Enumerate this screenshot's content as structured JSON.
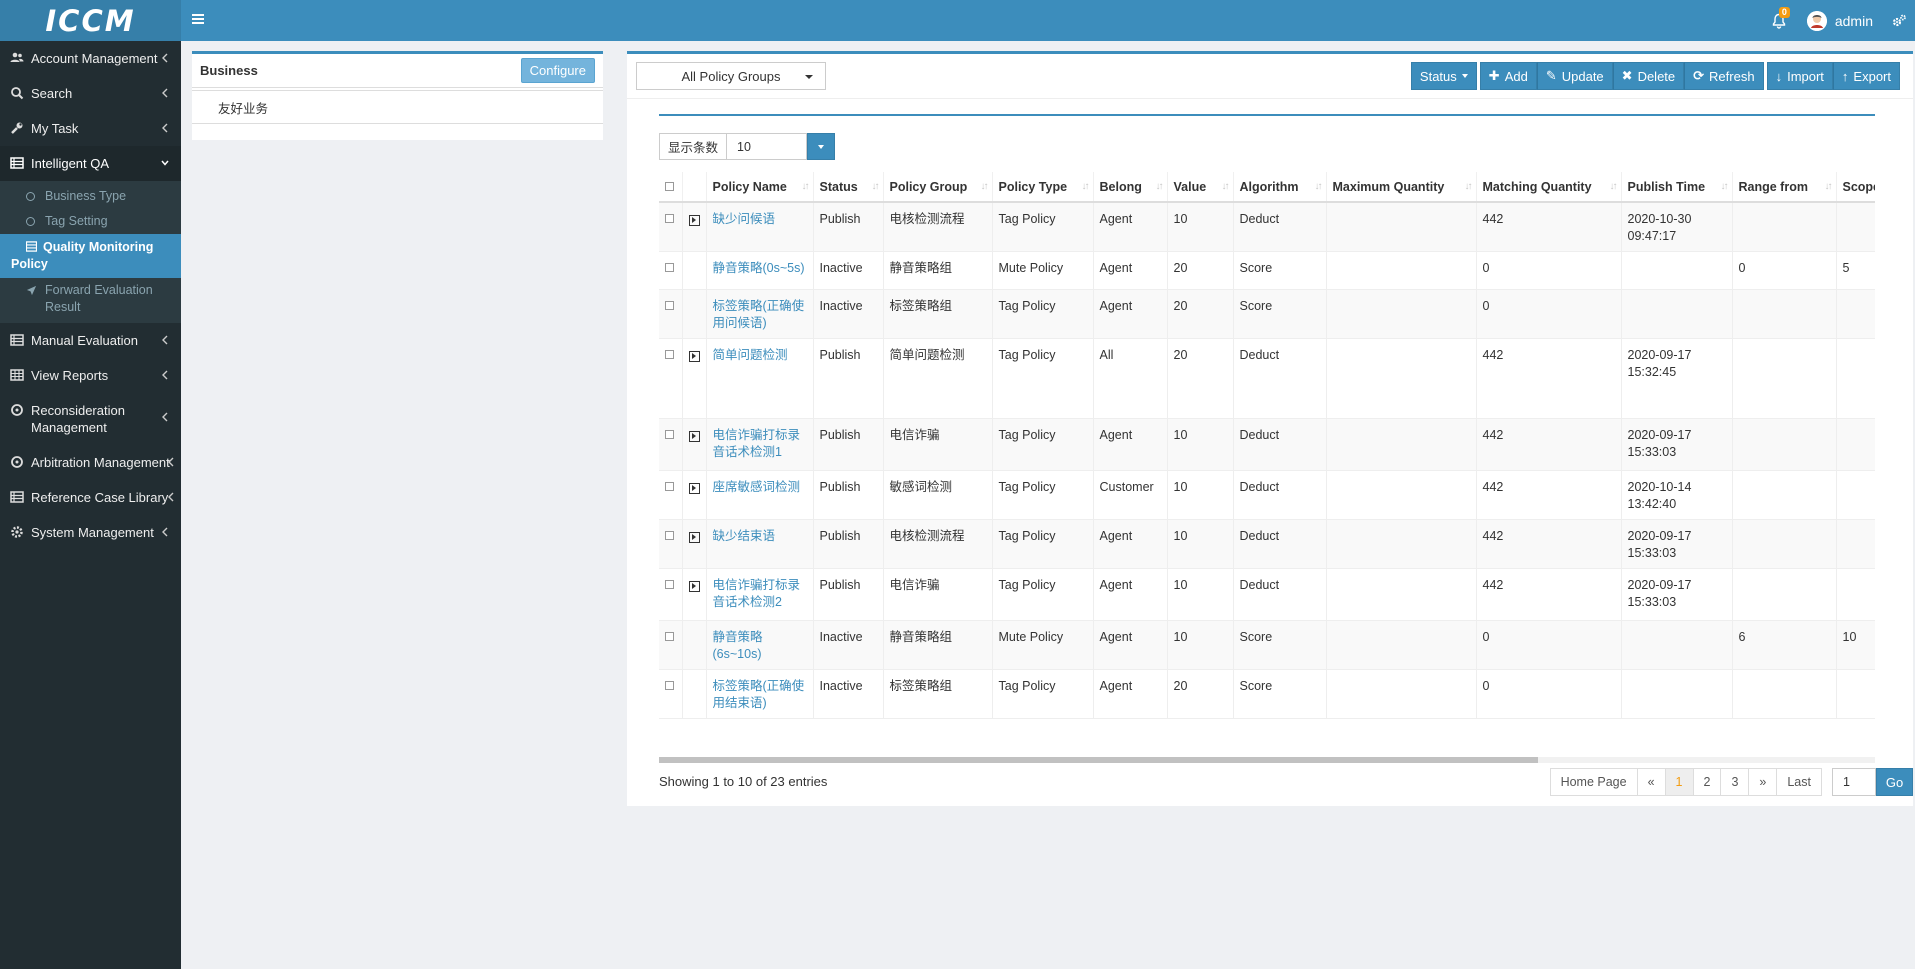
{
  "app": {
    "logo_text": "ICCM"
  },
  "header": {
    "notification_count": "0",
    "user": "admin"
  },
  "sidebar": {
    "items": [
      {
        "label": "Account Management",
        "icon": "users-icon"
      },
      {
        "label": "Search",
        "icon": "search-icon"
      },
      {
        "label": "My Task",
        "icon": "wrench-icon"
      },
      {
        "label": "Intelligent QA",
        "icon": "list-icon",
        "expanded": true,
        "children": [
          {
            "label": "Business Type"
          },
          {
            "label": "Tag Setting"
          },
          {
            "label": "Quality Monitoring Policy",
            "selected": true
          },
          {
            "label": "Forward Evaluation Result"
          }
        ]
      },
      {
        "label": "Manual Evaluation",
        "icon": "list-icon"
      },
      {
        "label": "View Reports",
        "icon": "table-icon"
      },
      {
        "label": "Reconsideration Management",
        "icon": "circle-icon"
      },
      {
        "label": "Arbitration Management",
        "icon": "circle-icon"
      },
      {
        "label": "Reference Case Library",
        "icon": "list-icon"
      },
      {
        "label": "System Management",
        "icon": "gear-icon"
      }
    ]
  },
  "business_panel": {
    "title": "Business",
    "configure_label": "Configure",
    "rows": [
      "友好业务"
    ]
  },
  "toolbar": {
    "group_select": "All Policy Groups",
    "status_label": "Status",
    "add_label": "Add",
    "update_label": "Update",
    "delete_label": "Delete",
    "refresh_label": "Refresh",
    "import_label": "Import",
    "export_label": "Export"
  },
  "page_size": {
    "label": "显示条数",
    "value": "10"
  },
  "table": {
    "columns": [
      "Policy Name",
      "Status",
      "Policy Group",
      "Policy Type",
      "Belong",
      "Value",
      "Algorithm",
      "Maximum Quantity",
      "Matching Quantity",
      "Publish Time",
      "Range from",
      "Scope"
    ],
    "rows": [
      {
        "expand": true,
        "name": "缺少问候语",
        "status": "Publish",
        "group": "电核检测流程",
        "type": "Tag Policy",
        "belong": "Agent",
        "value": "10",
        "algorithm": "Deduct",
        "max": "",
        "matching": "442",
        "publish": "2020-10-30 09:47:17",
        "range": "",
        "scope": ""
      },
      {
        "expand": false,
        "name": "静音策略(0s~5s)",
        "status": "Inactive",
        "group": "静音策略组",
        "type": "Mute Policy",
        "belong": "Agent",
        "value": "20",
        "algorithm": "Score",
        "max": "",
        "matching": "0",
        "publish": "",
        "range": "0",
        "scope": "5"
      },
      {
        "expand": false,
        "name": "标签策略(正确使用问候语)",
        "status": "Inactive",
        "group": "标签策略组",
        "type": "Tag Policy",
        "belong": "Agent",
        "value": "20",
        "algorithm": "Score",
        "max": "",
        "matching": "0",
        "publish": "",
        "range": "",
        "scope": ""
      },
      {
        "expand": true,
        "name": "简单问题检测",
        "status": "Publish",
        "group": "简单问题检测",
        "type": "Tag Policy",
        "belong": "All",
        "value": "20",
        "algorithm": "Deduct",
        "max": "",
        "matching": "442",
        "publish": "2020-09-17 15:32:45",
        "range": "",
        "scope": ""
      },
      {
        "expand": true,
        "name": "电信诈骗打标录音话术检测1",
        "status": "Publish",
        "group": "电信诈骗",
        "type": "Tag Policy",
        "belong": "Agent",
        "value": "10",
        "algorithm": "Deduct",
        "max": "",
        "matching": "442",
        "publish": "2020-09-17 15:33:03",
        "range": "",
        "scope": ""
      },
      {
        "expand": true,
        "name": "座席敏感词检测",
        "status": "Publish",
        "group": "敏感词检测",
        "type": "Tag Policy",
        "belong": "Customer",
        "value": "10",
        "algorithm": "Deduct",
        "max": "",
        "matching": "442",
        "publish": "2020-10-14 13:42:40",
        "range": "",
        "scope": ""
      },
      {
        "expand": true,
        "name": "缺少结束语",
        "status": "Publish",
        "group": "电核检测流程",
        "type": "Tag Policy",
        "belong": "Agent",
        "value": "10",
        "algorithm": "Deduct",
        "max": "",
        "matching": "442",
        "publish": "2020-09-17 15:33:03",
        "range": "",
        "scope": ""
      },
      {
        "expand": true,
        "name": "电信诈骗打标录音话术检测2",
        "status": "Publish",
        "group": "电信诈骗",
        "type": "Tag Policy",
        "belong": "Agent",
        "value": "10",
        "algorithm": "Deduct",
        "max": "",
        "matching": "442",
        "publish": "2020-09-17 15:33:03",
        "range": "",
        "scope": ""
      },
      {
        "expand": false,
        "name": "静音策略(6s~10s)",
        "status": "Inactive",
        "group": "静音策略组",
        "type": "Mute Policy",
        "belong": "Agent",
        "value": "10",
        "algorithm": "Score",
        "max": "",
        "matching": "0",
        "publish": "",
        "range": "6",
        "scope": "10"
      },
      {
        "expand": false,
        "name": "标签策略(正确使用结束语)",
        "status": "Inactive",
        "group": "标签策略组",
        "type": "Tag Policy",
        "belong": "Agent",
        "value": "20",
        "algorithm": "Score",
        "max": "",
        "matching": "0",
        "publish": "",
        "range": "",
        "scope": ""
      }
    ]
  },
  "footer": {
    "summary": "Showing 1 to 10 of 23 entries",
    "pager": {
      "home": "Home Page",
      "prev": "«",
      "pages": [
        "1",
        "2",
        "3"
      ],
      "current": "1",
      "next": "»",
      "last": "Last"
    },
    "go_value": "1",
    "go_label": "Go"
  }
}
